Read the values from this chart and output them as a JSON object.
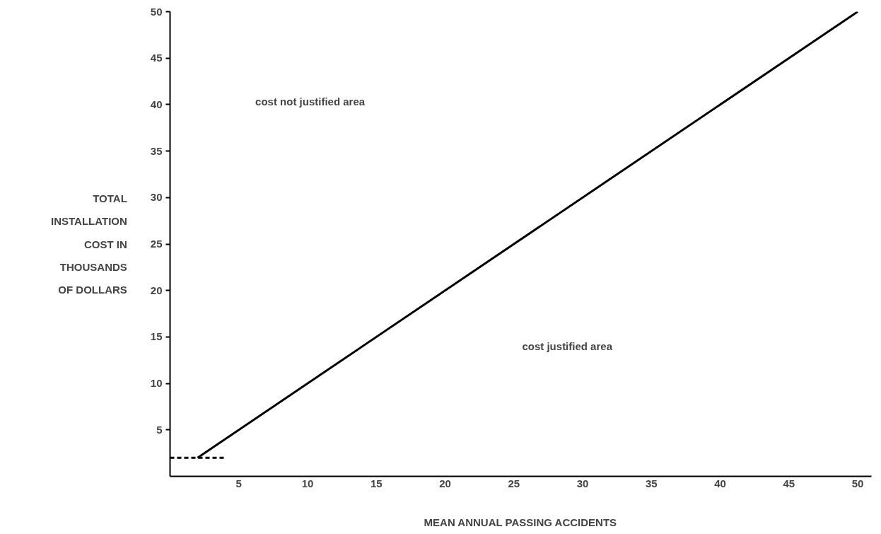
{
  "chart_data": {
    "type": "line",
    "xlabel": "MEAN ANNUAL PASSING ACCIDENTS",
    "ylabel": "TOTAL\nINSTALLATION\nCOST IN\nTHOUSANDS\nOF DOLLARS",
    "xlim": [
      0,
      51
    ],
    "ylim": [
      0,
      50
    ],
    "xticks": [
      5,
      10,
      15,
      20,
      25,
      30,
      35,
      40,
      45,
      50
    ],
    "yticks": [
      5,
      10,
      15,
      20,
      25,
      30,
      35,
      40,
      45,
      50
    ],
    "grid": false,
    "marker": "none",
    "series": [
      {
        "x": [
          2,
          50
        ],
        "values": [
          2,
          50
        ],
        "color": "#000000",
        "line_style": "solid"
      },
      {
        "x": [
          0,
          4
        ],
        "values": [
          2,
          2
        ],
        "color": "#000000",
        "line_style": "dashed"
      }
    ],
    "annotations": [
      "cost not justified area",
      "cost justified area"
    ]
  }
}
